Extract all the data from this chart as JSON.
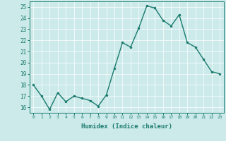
{
  "x": [
    0,
    1,
    2,
    3,
    4,
    5,
    6,
    7,
    8,
    9,
    10,
    11,
    12,
    13,
    14,
    15,
    16,
    17,
    18,
    19,
    20,
    21,
    22,
    23
  ],
  "y": [
    18.0,
    17.0,
    15.8,
    17.3,
    16.5,
    17.0,
    16.8,
    16.6,
    16.1,
    17.1,
    19.5,
    21.8,
    21.4,
    23.1,
    25.1,
    24.9,
    23.8,
    23.3,
    24.3,
    21.8,
    21.4,
    20.3,
    19.2,
    19.0
  ],
  "line_color": "#1a7a6e",
  "marker": "o",
  "marker_size": 2,
  "linewidth": 1.0,
  "bg_color": "#cceaea",
  "grid_color": "#ffffff",
  "grid_linewidth": 0.5,
  "tick_color": "#1a7a6e",
  "xlabel": "Humidex (Indice chaleur)",
  "xlabel_fontsize": 6.5,
  "xlabel_fontweight": "bold",
  "xlim": [
    -0.5,
    23.5
  ],
  "ylim": [
    15.5,
    25.5
  ],
  "yticks": [
    16,
    17,
    18,
    19,
    20,
    21,
    22,
    23,
    24,
    25
  ],
  "xticks": [
    0,
    1,
    2,
    3,
    4,
    5,
    6,
    7,
    8,
    9,
    10,
    11,
    12,
    13,
    14,
    15,
    16,
    17,
    18,
    19,
    20,
    21,
    22,
    23
  ],
  "xtick_labels": [
    "0",
    "1",
    "2",
    "3",
    "4",
    "5",
    "6",
    "7",
    "8",
    "9",
    "10",
    "11",
    "12",
    "13",
    "14",
    "15",
    "16",
    "17",
    "18",
    "19",
    "20",
    "21",
    "22",
    "23"
  ],
  "xtick_fontsize": 4.5,
  "ytick_fontsize": 5.5
}
